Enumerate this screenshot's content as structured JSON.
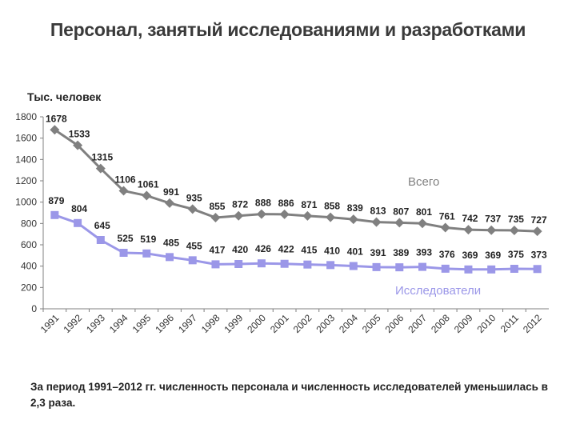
{
  "slide": {
    "title": "Персонал, занятый исследованиями и разработками",
    "note": "За период 1991–2012 гг. численность персонала и численность исследователей уменьшилась в 2,3 раза."
  },
  "chart_data": {
    "type": "line",
    "ylabel": "Тыс. человек",
    "ylim": [
      0,
      1800
    ],
    "yticks": [
      0,
      200,
      400,
      600,
      800,
      1000,
      1200,
      1400,
      1600,
      1800
    ],
    "grid": false,
    "categories": [
      "1991",
      "1992",
      "1993",
      "1994",
      "1995",
      "1996",
      "1997",
      "1998",
      "1999",
      "2000",
      "2001",
      "2002",
      "2003",
      "2004",
      "2005",
      "2006",
      "2007",
      "2008",
      "2009",
      "2010",
      "2011",
      "2012"
    ],
    "series": [
      {
        "name": "Всего",
        "color": "#808080",
        "marker": "diamond",
        "values": [
          1678,
          1533,
          1315,
          1106,
          1061,
          991,
          935,
          855,
          872,
          888,
          886,
          871,
          858,
          839,
          813,
          807,
          801,
          761,
          742,
          737,
          735,
          727
        ]
      },
      {
        "name": "Исследователи",
        "color": "#9b97e8",
        "marker": "square",
        "values": [
          879,
          804,
          645,
          525,
          519,
          485,
          455,
          417,
          420,
          426,
          422,
          415,
          410,
          401,
          391,
          389,
          393,
          376,
          369,
          369,
          375,
          373
        ]
      }
    ]
  }
}
